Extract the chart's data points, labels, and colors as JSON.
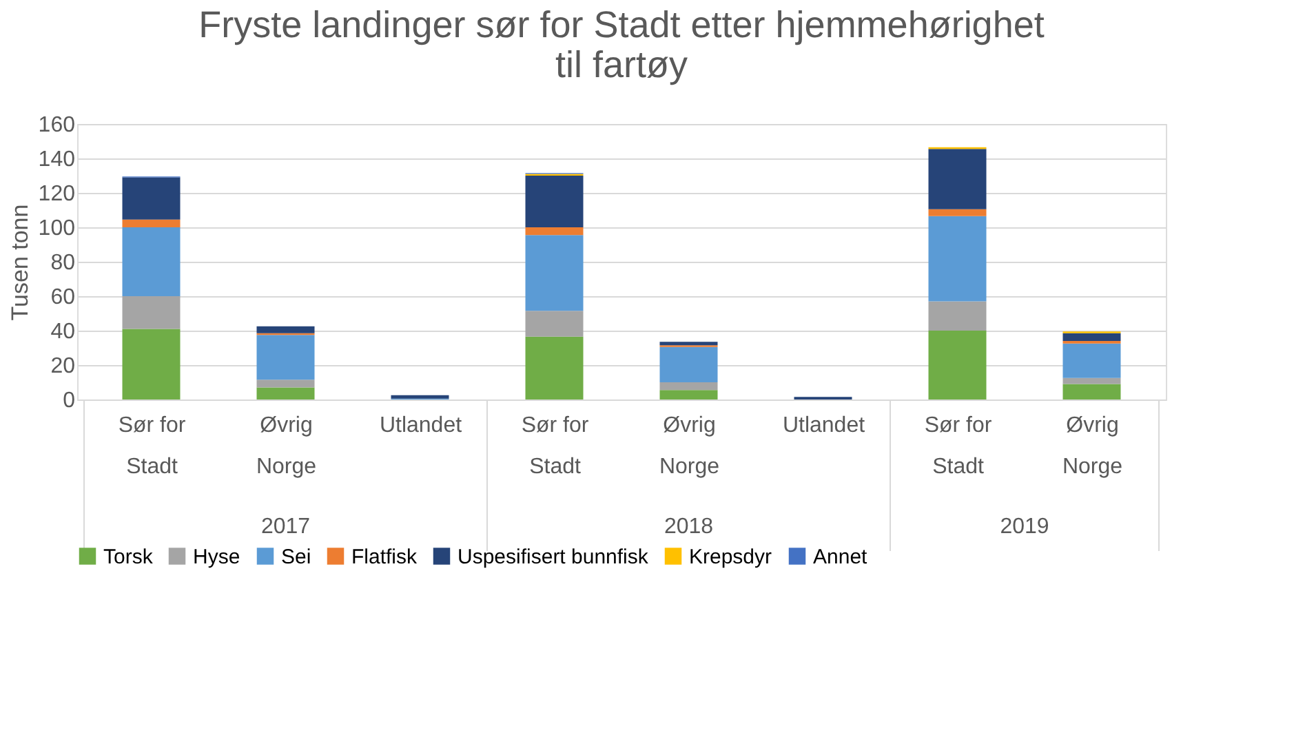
{
  "chart_data": {
    "type": "bar",
    "stacked": true,
    "title": "Fryste landinger sør for Stadt etter hjemmehørighet til fartøy",
    "ylabel": "Tusen tonn",
    "categories": [
      "Sør for Stadt",
      "Øvrig Norge",
      "Utlandet",
      "Sør for Stadt",
      "Øvrig Norge",
      "Utlandet",
      "Sør for Stadt",
      "Øvrig Norge"
    ],
    "series": [
      {
        "name": "Torsk",
        "color": "#70ad47",
        "values": [
          41,
          7,
          null,
          36.5,
          5.5,
          null,
          40,
          9
        ]
      },
      {
        "name": "Hyse",
        "color": "#a5a5a5",
        "values": [
          19,
          4.5,
          null,
          15,
          4.5,
          null,
          17,
          3.5
        ]
      },
      {
        "name": "Sei",
        "color": "#5b9bd5",
        "values": [
          40,
          26,
          0.5,
          44,
          20.5,
          null,
          49.5,
          20
        ]
      },
      {
        "name": "Flatfisk",
        "color": "#ed7d31",
        "values": [
          4.5,
          1,
          null,
          4.5,
          1,
          null,
          4,
          1.5
        ]
      },
      {
        "name": "Uspesifisert bunnfisk",
        "color": "#264478",
        "values": [
          24.5,
          4,
          2,
          30,
          2,
          1.5,
          35,
          4.5
        ]
      },
      {
        "name": "Krepsdyr",
        "color": "#ffc000",
        "values": [
          null,
          null,
          null,
          1,
          null,
          null,
          1,
          1
        ]
      },
      {
        "name": "Annet",
        "color": "#4472c4",
        "values": [
          0.5,
          null,
          null,
          0.5,
          null,
          null,
          null,
          null
        ]
      }
    ],
    "ylim": [
      0,
      160
    ],
    "yticks": [
      0,
      20,
      40,
      60,
      80,
      100,
      120,
      140,
      160
    ],
    "grid": "y",
    "legend": "bottom",
    "annotations": [
      "2017",
      "2018",
      "2019"
    ]
  }
}
